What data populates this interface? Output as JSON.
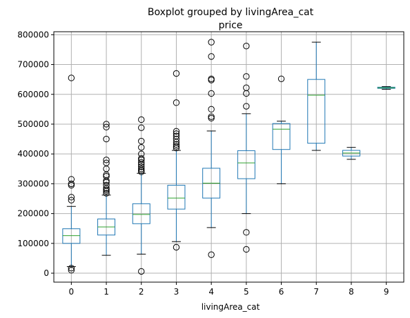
{
  "chart_data": {
    "type": "boxplot",
    "title": "Boxplot grouped by livingArea_cat",
    "subtitle": "price",
    "xlabel": "livingArea_cat",
    "ylabel": "",
    "ylim": [
      -30000,
      810000
    ],
    "yticks": [
      0,
      100000,
      200000,
      300000,
      400000,
      500000,
      600000,
      700000,
      800000
    ],
    "ytick_labels": [
      "0",
      "100000",
      "200000",
      "300000",
      "400000",
      "500000",
      "600000",
      "700000",
      "800000"
    ],
    "grid": true,
    "colors": {
      "box": "#1f77b4",
      "median": "#2ca02c",
      "grid": "#b0b0b0",
      "outlier": "#000000"
    },
    "categories": [
      "0",
      "1",
      "2",
      "3",
      "4",
      "5",
      "6",
      "7",
      "8",
      "9"
    ],
    "boxes": [
      {
        "category": "0",
        "whislo": 22000,
        "q1": 100000,
        "median": 126000,
        "q3": 149000,
        "whishi": 224000,
        "fliers": [
          655000,
          315000,
          300000,
          295000,
          255000,
          245000,
          17000,
          10000
        ]
      },
      {
        "category": "1",
        "whislo": 60000,
        "q1": 128000,
        "median": 155000,
        "q3": 182000,
        "whishi": 262000,
        "fliers": [
          500000,
          490000,
          450000,
          380000,
          370000,
          350000,
          330000,
          325000,
          310000,
          305000,
          295000,
          285000,
          280000,
          275000,
          268000
        ]
      },
      {
        "category": "2",
        "whislo": 64000,
        "q1": 166000,
        "median": 197000,
        "q3": 233000,
        "whishi": 335000,
        "fliers": [
          515000,
          488000,
          443000,
          422000,
          400000,
          385000,
          380000,
          372000,
          365000,
          357000,
          350000,
          345000,
          340000,
          6000
        ]
      },
      {
        "category": "3",
        "whislo": 106000,
        "q1": 215000,
        "median": 252000,
        "q3": 295000,
        "whishi": 412000,
        "fliers": [
          670000,
          572000,
          476000,
          468000,
          460000,
          450000,
          440000,
          432000,
          426000,
          420000,
          87000
        ]
      },
      {
        "category": "4",
        "whislo": 153000,
        "q1": 252000,
        "median": 302000,
        "q3": 352000,
        "whishi": 477000,
        "fliers": [
          775000,
          727000,
          652000,
          648000,
          603000,
          550000,
          525000,
          520000,
          62000
        ]
      },
      {
        "category": "5",
        "whislo": 200000,
        "q1": 317000,
        "median": 370000,
        "q3": 411000,
        "whishi": 535000,
        "fliers": [
          762000,
          660000,
          622000,
          603000,
          560000,
          137000,
          80000
        ]
      },
      {
        "category": "6",
        "whislo": 300000,
        "q1": 415000,
        "median": 483000,
        "q3": 502000,
        "whishi": 510000,
        "fliers": [
          652000
        ]
      },
      {
        "category": "7",
        "whislo": 412000,
        "q1": 436000,
        "median": 597000,
        "q3": 650000,
        "whishi": 775000,
        "fliers": []
      },
      {
        "category": "8",
        "whislo": 382000,
        "q1": 393000,
        "median": 403000,
        "q3": 412000,
        "whishi": 422000,
        "fliers": []
      },
      {
        "category": "9",
        "whislo": 617000,
        "q1": 620000,
        "median": 622000,
        "q3": 624000,
        "whishi": 626000,
        "fliers": []
      }
    ]
  }
}
